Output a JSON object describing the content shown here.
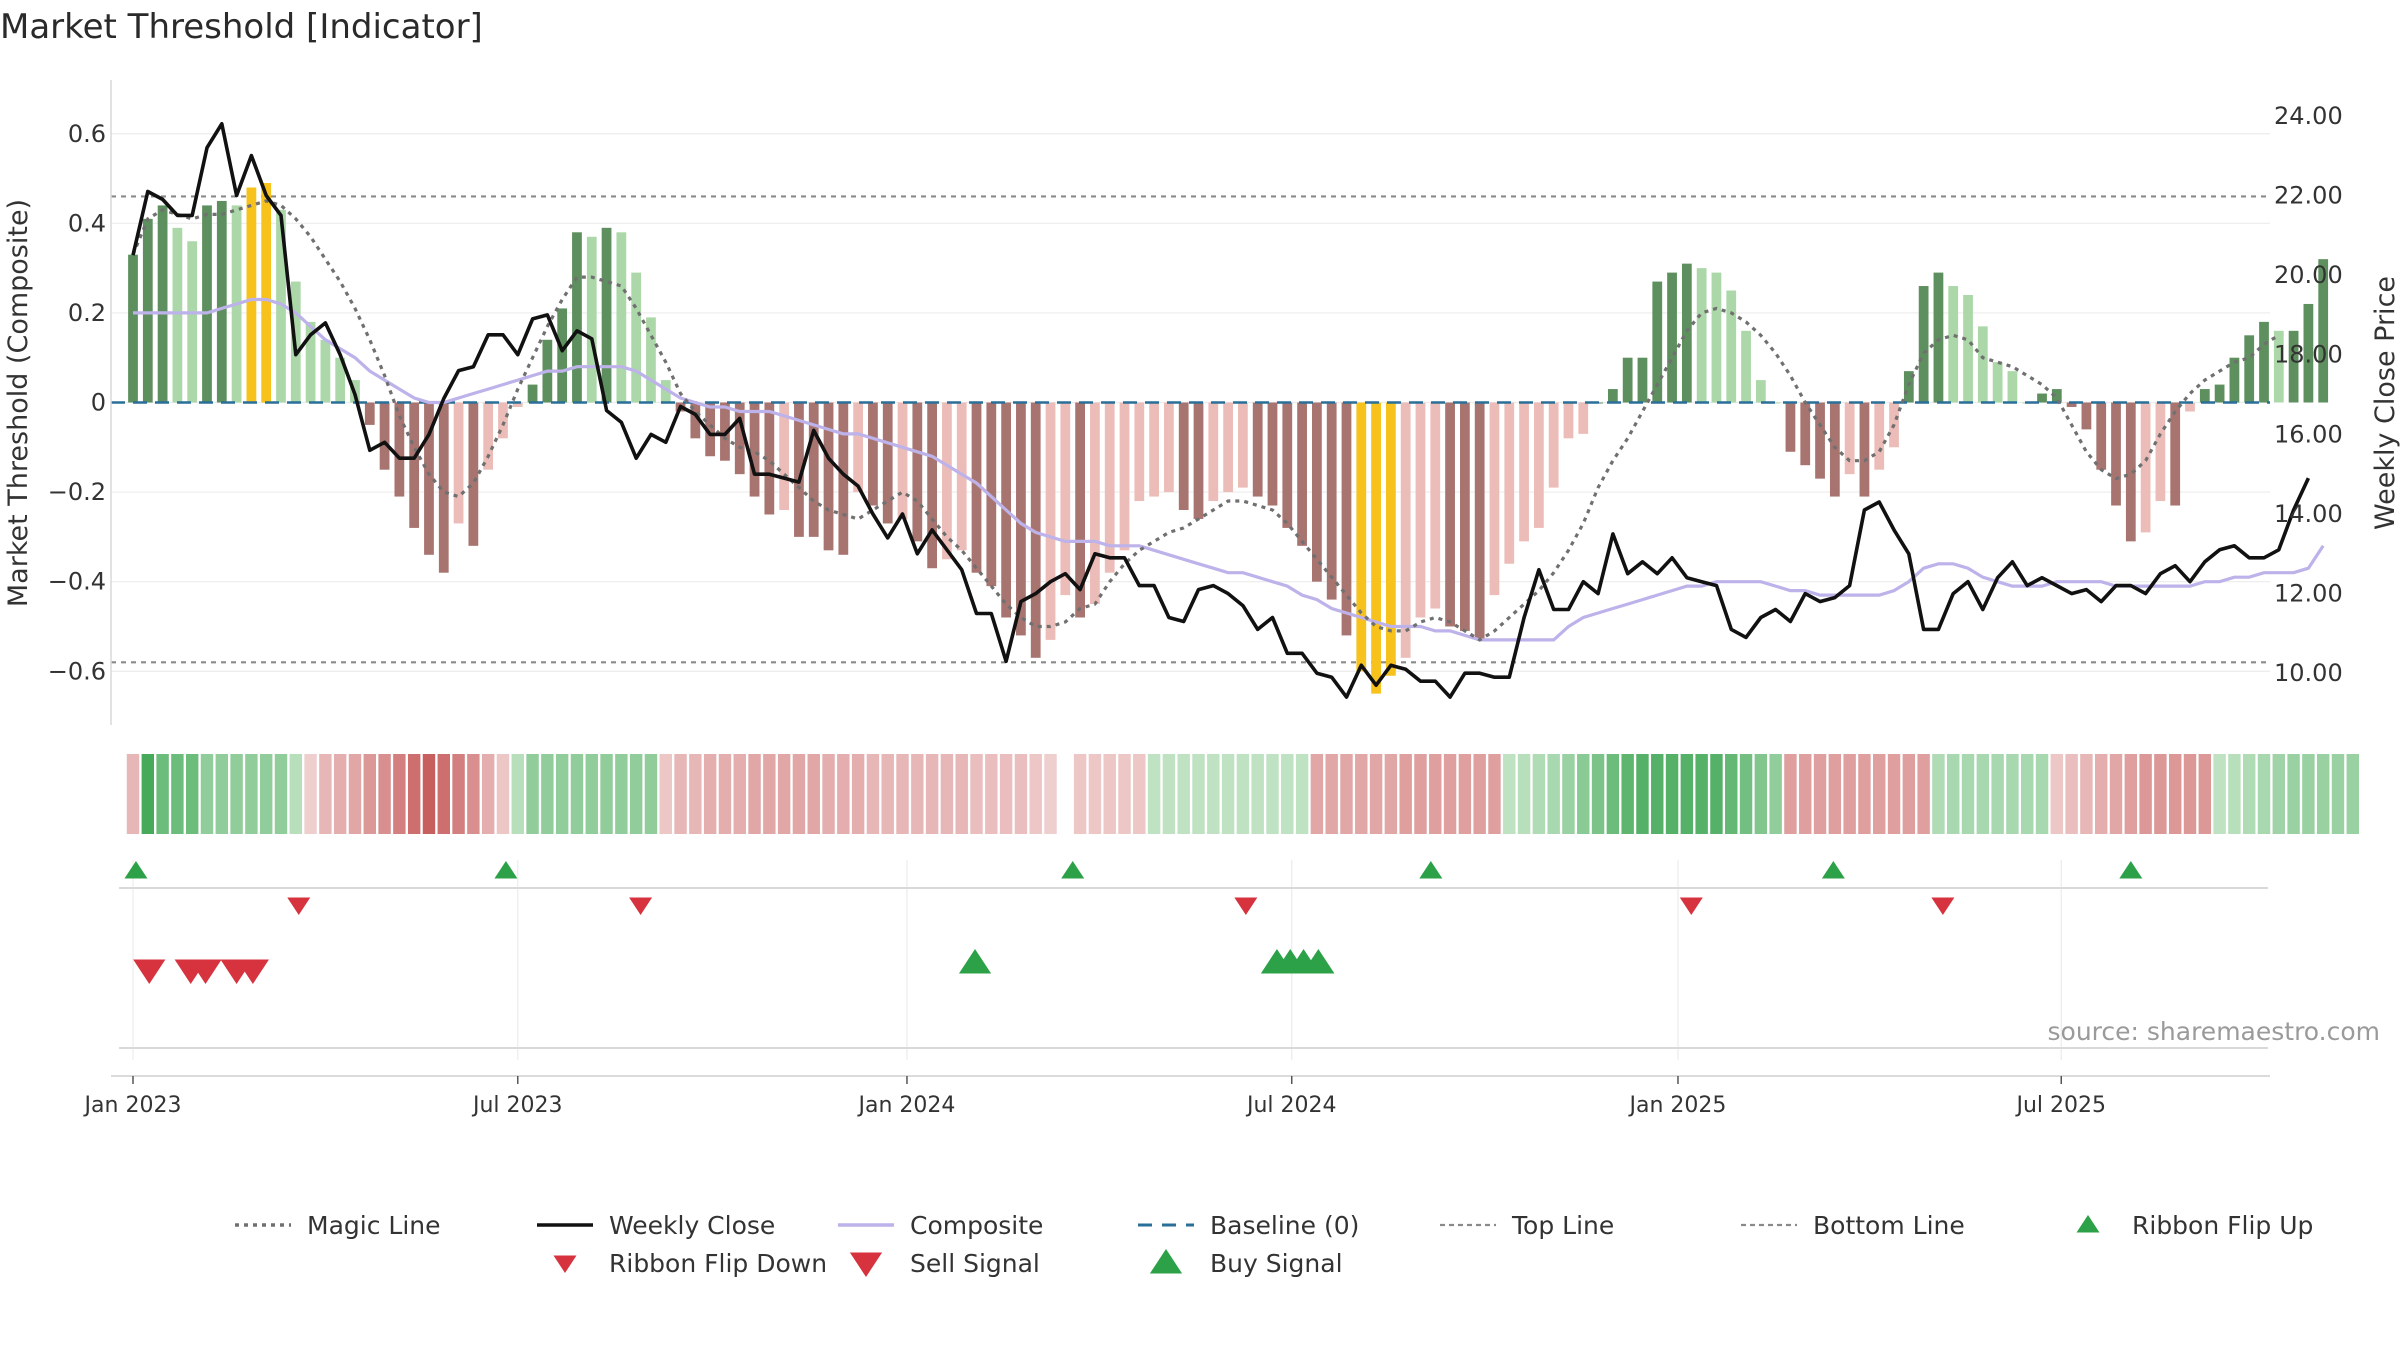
{
  "title": "Market Threshold [Indicator]",
  "source": "source: sharemaestro.com",
  "colors": {
    "magic": "#707070",
    "close": "#111111",
    "composite": "#bdb2ea",
    "baseline": "#2a6f97",
    "refline": "#8a8a8a",
    "up_dark": "#5e8f5e",
    "up_light": "#acd8a9",
    "down_dark": "#a87470",
    "down_light": "#ecbdb8",
    "extreme": "#f7c21b",
    "signal_up": "#2ca147",
    "signal_down": "#d7333f"
  },
  "legend": [
    {
      "label": "Magic Line",
      "kind": "dotted",
      "color": "#707070"
    },
    {
      "label": "Weekly Close",
      "kind": "solid",
      "color": "#111111"
    },
    {
      "label": "Composite",
      "kind": "solid",
      "color": "#bdb2ea"
    },
    {
      "label": "Baseline (0)",
      "kind": "dashed",
      "color": "#2a6f97"
    },
    {
      "label": "Top Line",
      "kind": "fine-dotted",
      "color": "#8a8a8a"
    },
    {
      "label": "Bottom Line",
      "kind": "fine-dotted",
      "color": "#8a8a8a"
    },
    {
      "label": "Ribbon Flip Up",
      "kind": "triangle-up-small",
      "color": "#2ca147"
    },
    {
      "label": "Ribbon Flip Down",
      "kind": "triangle-down-small",
      "color": "#d7333f"
    },
    {
      "label": "Sell Signal",
      "kind": "triangle-down",
      "color": "#d7333f"
    },
    {
      "label": "Buy Signal",
      "kind": "triangle-up",
      "color": "#2ca147"
    }
  ],
  "chart_data": {
    "type": "bar",
    "title": "Market Threshold [Indicator]",
    "ylabel_left": "Market Threshold (Composite)",
    "ylabel_right": "Weekly Close Price",
    "ylim_left": [
      -0.72,
      0.72
    ],
    "ylim_right": [
      8.7,
      24.9
    ],
    "yticks_left": [
      {
        "v": 0.6,
        "label": "0.6"
      },
      {
        "v": 0.4,
        "label": "0.4"
      },
      {
        "v": 0.2,
        "label": "0.2"
      },
      {
        "v": 0,
        "label": "0"
      },
      {
        "v": -0.2,
        "label": "−0.2"
      },
      {
        "v": -0.4,
        "label": "−0.4"
      },
      {
        "v": -0.6,
        "label": "−0.6"
      }
    ],
    "yticks_right": [
      {
        "v": 24,
        "label": "24.00"
      },
      {
        "v": 22,
        "label": "22.00"
      },
      {
        "v": 20,
        "label": "20.00"
      },
      {
        "v": 18,
        "label": "18.00"
      },
      {
        "v": 16,
        "label": "16.00"
      },
      {
        "v": 14,
        "label": "14.00"
      },
      {
        "v": 12,
        "label": "12.00"
      },
      {
        "v": 10,
        "label": "10.00"
      }
    ],
    "x_week_start": 0,
    "x_week_end": 144,
    "xticks": [
      {
        "w": 0,
        "label": "Jan 2023"
      },
      {
        "w": 26,
        "label": "Jul 2023"
      },
      {
        "w": 52.3,
        "label": "Jan 2024"
      },
      {
        "w": 78.3,
        "label": "Jul 2024"
      },
      {
        "w": 104.4,
        "label": "Jan 2025"
      },
      {
        "w": 130.3,
        "label": "Jul 2025"
      }
    ],
    "top_line": 0.46,
    "bottom_line": -0.58,
    "baseline": 0,
    "grid": true,
    "legend_position": "bottom",
    "composite_bars": [
      0.33,
      0.41,
      0.44,
      0.39,
      0.36,
      0.44,
      0.45,
      0.44,
      0.48,
      0.49,
      0.43,
      0.27,
      0.18,
      0.14,
      0.1,
      0.05,
      -0.05,
      -0.15,
      -0.21,
      -0.28,
      -0.34,
      -0.38,
      -0.27,
      -0.32,
      -0.15,
      -0.08,
      -0.01,
      0.04,
      0.14,
      0.21,
      0.38,
      0.37,
      0.39,
      0.38,
      0.29,
      0.19,
      0.05,
      -0.02,
      -0.08,
      -0.12,
      -0.13,
      -0.16,
      -0.21,
      -0.25,
      -0.24,
      -0.3,
      -0.3,
      -0.33,
      -0.34,
      -0.2,
      -0.23,
      -0.27,
      -0.26,
      -0.31,
      -0.37,
      -0.35,
      -0.33,
      -0.38,
      -0.41,
      -0.48,
      -0.52,
      -0.57,
      -0.53,
      -0.43,
      -0.48,
      -0.45,
      -0.38,
      -0.33,
      -0.22,
      -0.21,
      -0.2,
      -0.24,
      -0.26,
      -0.22,
      -0.2,
      -0.19,
      -0.21,
      -0.23,
      -0.28,
      -0.32,
      -0.4,
      -0.44,
      -0.52,
      -0.6,
      -0.65,
      -0.61,
      -0.57,
      -0.48,
      -0.46,
      -0.5,
      -0.51,
      -0.53,
      -0.43,
      -0.36,
      -0.31,
      -0.28,
      -0.19,
      -0.08,
      -0.07,
      0,
      0.03,
      0.1,
      0.1,
      0.27,
      0.29,
      0.31,
      0.3,
      0.29,
      0.25,
      0.16,
      0.05,
      0,
      -0.11,
      -0.14,
      -0.17,
      -0.21,
      -0.16,
      -0.21,
      -0.15,
      -0.1,
      0.07,
      0.26,
      0.29,
      0.26,
      0.24,
      0.17,
      0.09,
      0.07,
      0,
      0.02,
      0.03,
      -0.01,
      -0.06,
      -0.15,
      -0.23,
      -0.31,
      -0.29,
      -0.22,
      -0.23,
      -0.02,
      0.03,
      0.04,
      0.1,
      0.15,
      0.18,
      0.16,
      0.16,
      0.22,
      0.32
    ],
    "magic_line": [
      0.33,
      0.41,
      0.43,
      0.42,
      0.41,
      0.42,
      0.42,
      0.43,
      0.44,
      0.45,
      0.44,
      0.41,
      0.37,
      0.32,
      0.27,
      0.21,
      0.14,
      0.06,
      -0.03,
      -0.1,
      -0.16,
      -0.2,
      -0.21,
      -0.18,
      -0.12,
      -0.05,
      0.03,
      0.1,
      0.17,
      0.23,
      0.28,
      0.28,
      0.27,
      0.26,
      0.21,
      0.15,
      0.09,
      0.02,
      -0.02,
      -0.05,
      -0.08,
      -0.1,
      -0.11,
      -0.13,
      -0.16,
      -0.19,
      -0.22,
      -0.24,
      -0.25,
      -0.26,
      -0.24,
      -0.22,
      -0.2,
      -0.22,
      -0.26,
      -0.3,
      -0.33,
      -0.37,
      -0.41,
      -0.45,
      -0.48,
      -0.5,
      -0.5,
      -0.49,
      -0.46,
      -0.45,
      -0.4,
      -0.36,
      -0.33,
      -0.31,
      -0.29,
      -0.28,
      -0.26,
      -0.24,
      -0.22,
      -0.22,
      -0.23,
      -0.24,
      -0.27,
      -0.31,
      -0.35,
      -0.39,
      -0.43,
      -0.47,
      -0.5,
      -0.51,
      -0.51,
      -0.49,
      -0.48,
      -0.49,
      -0.51,
      -0.53,
      -0.51,
      -0.48,
      -0.45,
      -0.42,
      -0.38,
      -0.33,
      -0.27,
      -0.19,
      -0.13,
      -0.08,
      -0.02,
      0.04,
      0.1,
      0.16,
      0.2,
      0.21,
      0.2,
      0.18,
      0.15,
      0.11,
      0.06,
      0,
      -0.05,
      -0.1,
      -0.13,
      -0.13,
      -0.11,
      -0.05,
      0.04,
      0.11,
      0.14,
      0.15,
      0.14,
      0.1,
      0.09,
      0.08,
      0.06,
      0.04,
      0.01,
      -0.05,
      -0.11,
      -0.15,
      -0.17,
      -0.16,
      -0.13,
      -0.07,
      -0.02,
      0.02,
      0.05,
      0.07,
      0.09,
      0.1,
      0.13,
      0.15
    ],
    "composite_line": [
      0.2,
      0.2,
      0.2,
      0.2,
      0.2,
      0.2,
      0.21,
      0.22,
      0.23,
      0.23,
      0.22,
      0.2,
      0.17,
      0.14,
      0.12,
      0.1,
      0.07,
      0.05,
      0.03,
      0.01,
      0,
      0,
      0.01,
      0.02,
      0.03,
      0.04,
      0.05,
      0.06,
      0.07,
      0.07,
      0.08,
      0.08,
      0.08,
      0.08,
      0.07,
      0.05,
      0.03,
      0.01,
      0,
      -0.01,
      -0.01,
      -0.02,
      -0.02,
      -0.02,
      -0.03,
      -0.04,
      -0.05,
      -0.06,
      -0.07,
      -0.07,
      -0.08,
      -0.09,
      -0.1,
      -0.11,
      -0.12,
      -0.14,
      -0.16,
      -0.18,
      -0.21,
      -0.24,
      -0.27,
      -0.29,
      -0.3,
      -0.31,
      -0.31,
      -0.31,
      -0.32,
      -0.32,
      -0.32,
      -0.33,
      -0.34,
      -0.35,
      -0.36,
      -0.37,
      -0.38,
      -0.38,
      -0.39,
      -0.4,
      -0.41,
      -0.43,
      -0.44,
      -0.46,
      -0.47,
      -0.48,
      -0.49,
      -0.5,
      -0.5,
      -0.5,
      -0.51,
      -0.51,
      -0.52,
      -0.53,
      -0.53,
      -0.53,
      -0.53,
      -0.53,
      -0.53,
      -0.5,
      -0.48,
      -0.47,
      -0.46,
      -0.45,
      -0.44,
      -0.43,
      -0.42,
      -0.41,
      -0.41,
      -0.4,
      -0.4,
      -0.4,
      -0.4,
      -0.41,
      -0.42,
      -0.42,
      -0.43,
      -0.43,
      -0.43,
      -0.43,
      -0.43,
      -0.42,
      -0.4,
      -0.37,
      -0.36,
      -0.36,
      -0.37,
      -0.39,
      -0.4,
      -0.41,
      -0.41,
      -0.41,
      -0.4,
      -0.4,
      -0.4,
      -0.4,
      -0.41,
      -0.41,
      -0.41,
      -0.41,
      -0.41,
      -0.41,
      -0.4,
      -0.4,
      -0.39,
      -0.39,
      -0.38,
      -0.38,
      -0.38,
      -0.37,
      -0.32
    ],
    "weekly_close": [
      20.5,
      22.1,
      21.9,
      21.5,
      21.5,
      23.2,
      23.8,
      22.0,
      23.0,
      22.0,
      21.5,
      18.0,
      18.5,
      18.8,
      18.0,
      17.0,
      15.6,
      15.8,
      15.4,
      15.4,
      16.0,
      16.9,
      17.6,
      17.7,
      18.5,
      18.5,
      18.0,
      18.9,
      19.0,
      18.1,
      18.6,
      18.4,
      16.6,
      16.3,
      15.4,
      16.0,
      15.8,
      16.7,
      16.5,
      16.0,
      16.0,
      16.4,
      15.0,
      15.0,
      14.9,
      14.8,
      16.1,
      15.4,
      15.0,
      14.7,
      14.0,
      13.4,
      14.0,
      13.0,
      13.6,
      13.1,
      12.6,
      11.5,
      11.5,
      10.3,
      11.8,
      12.0,
      12.3,
      12.5,
      12.1,
      13.0,
      12.9,
      12.9,
      12.2,
      12.2,
      11.4,
      11.3,
      12.1,
      12.2,
      12.0,
      11.7,
      11.1,
      11.4,
      10.5,
      10.5,
      10.0,
      9.9,
      9.4,
      10.2,
      9.7,
      10.2,
      10.1,
      9.8,
      9.8,
      9.4,
      10.0,
      10.0,
      9.9,
      9.9,
      11.4,
      12.6,
      11.6,
      11.6,
      12.3,
      12.0,
      13.5,
      12.5,
      12.8,
      12.5,
      12.9,
      12.4,
      12.3,
      12.2,
      11.1,
      10.9,
      11.4,
      11.6,
      11.3,
      12.0,
      11.8,
      11.9,
      12.2,
      14.1,
      14.3,
      13.6,
      13.0,
      11.1,
      11.1,
      12.0,
      12.3,
      11.6,
      12.4,
      12.8,
      12.2,
      12.4,
      12.2,
      12.0,
      12.1,
      11.8,
      12.2,
      12.2,
      12.0,
      12.5,
      12.7,
      12.3,
      12.8,
      13.1,
      13.2,
      12.9,
      12.9,
      13.1,
      14.1,
      14.9
    ],
    "ribbon": [
      -0.5,
      2,
      1.5,
      1.5,
      1.5,
      1,
      1,
      1,
      1,
      1,
      1,
      0.5,
      -0.2,
      -0.5,
      -0.6,
      -0.7,
      -0.9,
      -1,
      -1.2,
      -1.4,
      -1.6,
      -1.4,
      -1.2,
      -1,
      -0.6,
      -0.3,
      0.5,
      1,
      1,
      1,
      1,
      1,
      1,
      1,
      1,
      1,
      -0.3,
      -0.5,
      -0.5,
      -0.6,
      -0.6,
      -0.6,
      -0.7,
      -0.7,
      -0.7,
      -0.7,
      -0.7,
      -0.6,
      -0.6,
      -0.6,
      -0.5,
      -0.5,
      -0.5,
      -0.5,
      -0.5,
      -0.5,
      -0.5,
      -0.4,
      -0.4,
      -0.4,
      -0.4,
      -0.3,
      -0.2,
      0,
      -0.3,
      -0.3,
      -0.3,
      -0.3,
      -0.3,
      0.4,
      0.4,
      0.4,
      0.4,
      0.4,
      0.4,
      0.4,
      0.4,
      0.4,
      0.4,
      0.4,
      -0.7,
      -0.7,
      -0.7,
      -0.7,
      -0.7,
      -0.7,
      -0.8,
      -0.8,
      -0.8,
      -0.8,
      -0.8,
      -0.8,
      -0.8,
      0.4,
      0.5,
      0.6,
      0.7,
      0.9,
      1.1,
      1.3,
      1.5,
      1.7,
      1.8,
      1.8,
      1.8,
      1.8,
      1.8,
      1.8,
      1.6,
      1.4,
      1.2,
      1,
      -0.8,
      -0.8,
      -0.8,
      -0.8,
      -0.8,
      -0.8,
      -0.8,
      -0.8,
      -0.8,
      -0.8,
      0.6,
      0.7,
      0.7,
      0.7,
      0.7,
      0.7,
      0.7,
      0.7,
      -0.3,
      -0.4,
      -0.5,
      -0.6,
      -0.7,
      -0.8,
      -0.9,
      -0.9,
      -0.9,
      -0.9,
      -0.9,
      0.4,
      0.5,
      0.6,
      0.7,
      0.8,
      0.9,
      0.9,
      0.9,
      0.9,
      0.9
    ],
    "ribbon_flip_up": [
      0.2,
      25.2,
      63.5,
      87.7,
      114.9,
      135
    ],
    "ribbon_flip_down": [
      11.2,
      34.3,
      75.2,
      105.3,
      122.3
    ],
    "buy_signal": [
      56.9,
      77.3,
      78.2,
      79.1,
      80.1
    ],
    "sell_signal": [
      1.1,
      3.9,
      4.9,
      7.0,
      8.1
    ]
  }
}
